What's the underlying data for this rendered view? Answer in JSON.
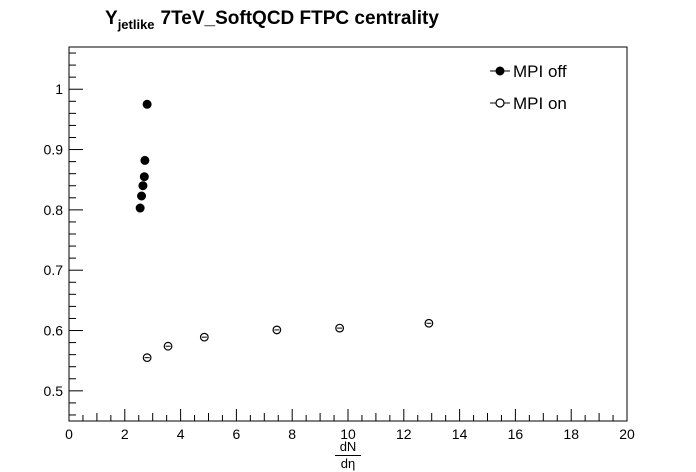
{
  "title": {
    "main": "Y",
    "subscript": "jetlike",
    "rest": "7TeV_SoftQCD FTPC centrality"
  },
  "axis": {
    "xlabel_num": "dN",
    "xlabel_den": "dη"
  },
  "chart_data": {
    "type": "scatter",
    "title": "Y_jetlike 7TeV_SoftQCD FTPC centrality",
    "xlabel": "dN/dη",
    "ylabel": "",
    "xlim": [
      0,
      20
    ],
    "ylim": [
      0.45,
      1.07
    ],
    "xticks": [
      0,
      2,
      4,
      6,
      8,
      10,
      12,
      14,
      16,
      18,
      20
    ],
    "yticks": [
      0.5,
      0.6,
      0.7,
      0.8,
      0.9,
      1
    ],
    "xtick_labels": [
      "0",
      "2",
      "4",
      "6",
      "8",
      "10",
      "12",
      "14",
      "16",
      "18",
      "20"
    ],
    "ytick_labels": [
      "0.5",
      "0.6",
      "0.7",
      "0.8",
      "0.9",
      "1"
    ],
    "legend_position": "top-right",
    "grid": false,
    "series": [
      {
        "name": "MPI off",
        "marker": "filled-circle",
        "color": "#000000",
        "points": [
          {
            "x": 2.55,
            "y": 0.803
          },
          {
            "x": 2.6,
            "y": 0.823
          },
          {
            "x": 2.65,
            "y": 0.84
          },
          {
            "x": 2.7,
            "y": 0.855
          },
          {
            "x": 2.72,
            "y": 0.882
          },
          {
            "x": 2.8,
            "y": 0.975
          }
        ]
      },
      {
        "name": "MPI on",
        "marker": "open-circle",
        "color": "#000000",
        "points": [
          {
            "x": 2.8,
            "y": 0.555
          },
          {
            "x": 3.55,
            "y": 0.574
          },
          {
            "x": 4.85,
            "y": 0.589
          },
          {
            "x": 7.45,
            "y": 0.601
          },
          {
            "x": 9.7,
            "y": 0.604
          },
          {
            "x": 12.9,
            "y": 0.612
          }
        ]
      }
    ]
  }
}
